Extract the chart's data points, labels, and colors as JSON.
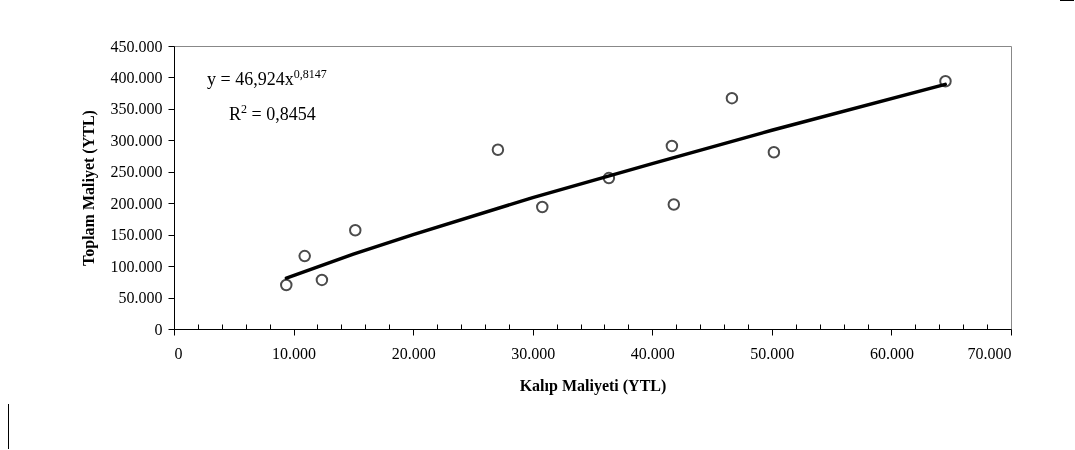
{
  "chart_data": {
    "type": "scatter",
    "xlabel": "Kalıp Maliyeti (YTL)",
    "ylabel": "Toplam Maliyet (YTL)",
    "annotations": [
      "y = 46,924x$^{0,8147}$",
      "R$^{2}$ = 0,8454"
    ],
    "series": [
      {
        "type": "scatter",
        "color": "#000000",
        "marker": "circle",
        "x": [
          9390,
          10930,
          12370,
          15160,
          27090,
          30800,
          36370,
          41640,
          41800,
          46660,
          50170,
          64520
        ],
        "values": [
          70000,
          116000,
          78000,
          157000,
          285000,
          194000,
          240000,
          291000,
          198000,
          367000,
          281000,
          394000
        ]
      },
      {
        "type": "line",
        "color": "#000000",
        "marker": "none",
        "x": [
          9400,
          15000,
          20000,
          30000,
          40000,
          50000,
          64500
        ],
        "values": [
          81000,
          119000,
          150000,
          209000,
          263000,
          316000,
          389000
        ]
      }
    ],
    "xlim": [
      0,
      70000
    ],
    "xticks": [
      0,
      {
        "value": 2000,
        "label": null
      },
      {
        "value": 4000,
        "label": null
      },
      {
        "value": 6000,
        "label": null
      },
      {
        "value": 8000,
        "label": null
      },
      {
        "value": 10000,
        "label": "10.000"
      },
      {
        "value": 12000,
        "label": null
      },
      {
        "value": 14000,
        "label": null
      },
      {
        "value": 16000,
        "label": null
      },
      {
        "value": 18000,
        "label": null
      },
      {
        "value": 20000,
        "label": "20.000"
      },
      {
        "value": 22000,
        "label": null
      },
      {
        "value": 24000,
        "label": null
      },
      {
        "value": 26000,
        "label": null
      },
      {
        "value": 28000,
        "label": null
      },
      {
        "value": 30000,
        "label": "30.000"
      },
      {
        "value": 32000,
        "label": null
      },
      {
        "value": 34000,
        "label": null
      },
      {
        "value": 36000,
        "label": null
      },
      {
        "value": 38000,
        "label": null
      },
      {
        "value": 40000,
        "label": "40.000"
      },
      {
        "value": 42000,
        "label": null
      },
      {
        "value": 44000,
        "label": null
      },
      {
        "value": 46000,
        "label": null
      },
      {
        "value": 48000,
        "label": null
      },
      {
        "value": 50000,
        "label": "50.000"
      },
      {
        "value": 52000,
        "label": null
      },
      {
        "value": 54000,
        "label": null
      },
      {
        "value": 56000,
        "label": null
      },
      {
        "value": 58000,
        "label": null
      },
      {
        "value": 60000,
        "label": "60.000"
      },
      {
        "value": 62000,
        "label": null
      },
      {
        "value": 64000,
        "label": null
      },
      {
        "value": 66000,
        "label": null
      },
      {
        "value": 68000,
        "label": null
      },
      {
        "value": 70000,
        "label": "70.000"
      }
    ],
    "ylim": [
      0,
      450000
    ],
    "yticks": [
      0,
      {
        "value": 50000,
        "label": "50.000"
      },
      {
        "value": 100000,
        "label": "100.000"
      },
      {
        "value": 150000,
        "label": "150.000"
      },
      {
        "value": 200000,
        "label": "200.000"
      },
      {
        "value": 250000,
        "label": "250.000"
      },
      {
        "value": 300000,
        "label": "300.000"
      },
      {
        "value": 350000,
        "label": "350.000"
      },
      {
        "value": 400000,
        "label": "400.000"
      },
      {
        "value": 450000,
        "label": "450.000"
      }
    ],
    "grid": false,
    "legend": false
  }
}
